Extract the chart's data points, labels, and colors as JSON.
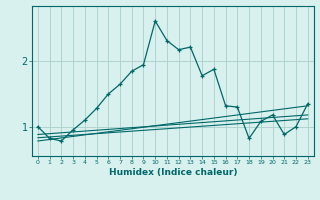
{
  "xlabel": "Humidex (Indice chaleur)",
  "ylabel": "",
  "background_color": "#d8f0ee",
  "grid_color": "#b0d4d0",
  "line_color": "#006868",
  "xlim": [
    -0.5,
    23.5
  ],
  "ylim": [
    0.55,
    2.85
  ],
  "yticks": [
    1,
    2
  ],
  "ytick_labels": [
    "1",
    "2"
  ],
  "xticks": [
    0,
    1,
    2,
    3,
    4,
    5,
    6,
    7,
    8,
    9,
    10,
    11,
    12,
    13,
    14,
    15,
    16,
    17,
    18,
    19,
    20,
    21,
    22,
    23
  ],
  "main_x": [
    0,
    1,
    2,
    3,
    4,
    5,
    6,
    7,
    8,
    9,
    10,
    11,
    12,
    13,
    14,
    15,
    16,
    17,
    18,
    19,
    20,
    21,
    22,
    23
  ],
  "main_y": [
    1.0,
    0.82,
    0.78,
    0.95,
    1.1,
    1.28,
    1.5,
    1.65,
    1.85,
    1.95,
    2.62,
    2.32,
    2.18,
    2.22,
    1.78,
    1.88,
    1.32,
    1.3,
    0.82,
    1.08,
    1.18,
    0.88,
    1.0,
    1.35
  ],
  "line1_x": [
    0,
    23
  ],
  "line1_y": [
    0.88,
    1.18
  ],
  "line2_x": [
    0,
    23
  ],
  "line2_y": [
    0.83,
    1.12
  ],
  "line3_x": [
    0,
    23
  ],
  "line3_y": [
    0.78,
    1.32
  ]
}
